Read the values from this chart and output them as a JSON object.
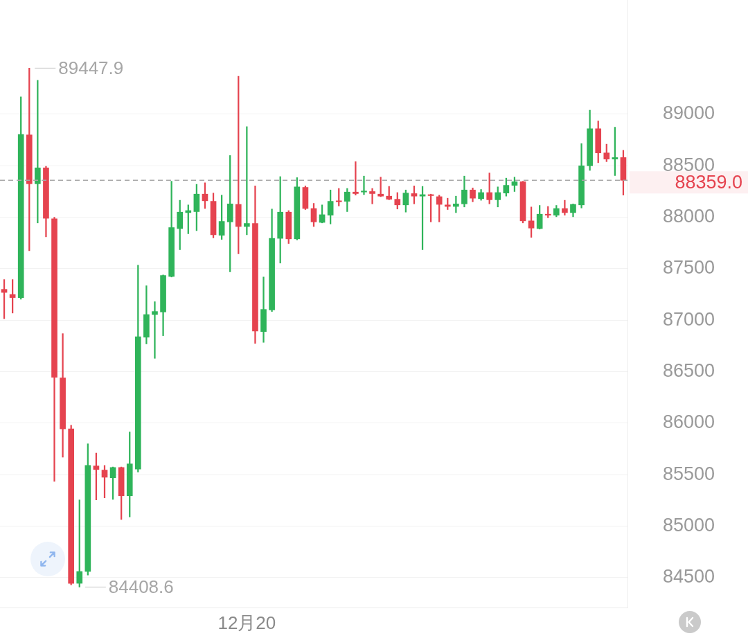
{
  "chart_data": {
    "type": "candlestick",
    "categories": [
      null,
      null,
      null,
      null,
      null,
      null,
      null,
      null,
      null,
      null,
      null,
      null,
      null,
      null,
      null,
      null,
      null,
      null,
      null,
      null,
      null,
      null,
      null,
      null,
      null,
      null,
      null,
      null,
      null,
      "12月20",
      null,
      null,
      null,
      null,
      null,
      null,
      null,
      null,
      null,
      null,
      null,
      null,
      null,
      null,
      null,
      null,
      null,
      null,
      null,
      null,
      null,
      null,
      null,
      null,
      null,
      null,
      null,
      null,
      null,
      null,
      null,
      null,
      null,
      null,
      null,
      null,
      null,
      null,
      null,
      null,
      null,
      null,
      null,
      null,
      null
    ],
    "ohlc": [
      [
        87300,
        87395,
        87015,
        87270
      ],
      [
        87250,
        87395,
        87070,
        87220
      ],
      [
        87220,
        89170,
        87205,
        88805
      ],
      [
        88800,
        89447.9,
        87675,
        88325
      ],
      [
        88325,
        89330,
        87945,
        88480
      ],
      [
        88480,
        88495,
        87810,
        87990
      ],
      [
        87985,
        88000,
        85435,
        86445
      ],
      [
        86440,
        86870,
        85670,
        85945
      ],
      [
        85945,
        85980,
        84430,
        84445
      ],
      [
        84445,
        85255,
        84408.6,
        84560
      ],
      [
        84560,
        85800,
        84525,
        85590
      ],
      [
        85585,
        85710,
        85255,
        85550
      ],
      [
        85545,
        85590,
        85275,
        85475
      ],
      [
        85470,
        85575,
        85260,
        85570
      ],
      [
        85570,
        85575,
        85065,
        85295
      ],
      [
        85295,
        85915,
        85090,
        85605
      ],
      [
        85555,
        87535,
        85525,
        86840
      ],
      [
        86835,
        87335,
        86770,
        87055
      ],
      [
        87055,
        87180,
        86630,
        87085
      ],
      [
        87080,
        87440,
        86850,
        87435
      ],
      [
        87425,
        88350,
        87420,
        87900
      ],
      [
        87890,
        88165,
        87685,
        88050
      ],
      [
        88045,
        88120,
        87840,
        88065
      ],
      [
        88055,
        88320,
        87870,
        88225
      ],
      [
        88225,
        88335,
        88085,
        88160
      ],
      [
        88155,
        88235,
        87800,
        87830
      ],
      [
        87825,
        88215,
        87785,
        87960
      ],
      [
        87955,
        88600,
        87470,
        88130
      ],
      [
        88125,
        89370,
        87645,
        87910
      ],
      [
        87910,
        88880,
        87830,
        87940
      ],
      [
        87940,
        88305,
        86775,
        86895
      ],
      [
        86890,
        87420,
        86785,
        87105
      ],
      [
        87100,
        88080,
        87085,
        87795
      ],
      [
        87795,
        88395,
        87555,
        88050
      ],
      [
        88050,
        88065,
        87745,
        87790
      ],
      [
        87790,
        88385,
        87780,
        88295
      ],
      [
        88290,
        88305,
        88075,
        88085
      ],
      [
        88085,
        88135,
        87910,
        87955
      ],
      [
        87950,
        88120,
        87945,
        88025
      ],
      [
        88020,
        88265,
        87935,
        88155
      ],
      [
        88160,
        88280,
        88110,
        88150
      ],
      [
        88155,
        88280,
        88055,
        88245
      ],
      [
        88245,
        88540,
        88215,
        88230
      ],
      [
        88245,
        88400,
        88220,
        88255
      ],
      [
        88250,
        88280,
        88130,
        88230
      ],
      [
        88225,
        88390,
        88200,
        88205
      ],
      [
        88205,
        88300,
        88170,
        88175
      ],
      [
        88175,
        88240,
        88080,
        88120
      ],
      [
        88120,
        88265,
        88050,
        88235
      ],
      [
        88230,
        88305,
        88130,
        88205
      ],
      [
        88205,
        88300,
        87685,
        88220
      ],
      [
        88220,
        88225,
        87955,
        88210
      ],
      [
        88200,
        88215,
        87955,
        88125
      ],
      [
        88120,
        88185,
        88075,
        88105
      ],
      [
        88105,
        88205,
        88045,
        88130
      ],
      [
        88130,
        88400,
        88100,
        88265
      ],
      [
        88265,
        88285,
        88150,
        88185
      ],
      [
        88180,
        88270,
        88165,
        88240
      ],
      [
        88240,
        88430,
        88130,
        88170
      ],
      [
        88170,
        88295,
        88100,
        88240
      ],
      [
        88235,
        88380,
        88205,
        88310
      ],
      [
        88310,
        88390,
        88250,
        88345
      ],
      [
        88345,
        88350,
        87945,
        87965
      ],
      [
        87965,
        88100,
        87805,
        87895
      ],
      [
        87890,
        88115,
        87885,
        88030
      ],
      [
        88030,
        88105,
        87995,
        88020
      ],
      [
        88020,
        88115,
        88005,
        88085
      ],
      [
        88085,
        88165,
        88020,
        88045
      ],
      [
        88045,
        88130,
        88005,
        88125
      ],
      [
        88120,
        88715,
        88090,
        88500
      ],
      [
        88500,
        89040,
        88455,
        88860
      ],
      [
        88860,
        88935,
        88530,
        88625
      ],
      [
        88625,
        88710,
        88540,
        88565
      ],
      [
        88565,
        88875,
        88405,
        88580
      ],
      [
        88580,
        88650,
        88215,
        88359.0
      ]
    ],
    "colors": [
      "#e5434f",
      "#e5434f",
      "#2fb45a",
      "#e5434f",
      "#2fb45a",
      "#e5434f",
      "#e5434f",
      "#e5434f",
      "#e5434f",
      "#2fb45a",
      "#2fb45a",
      "#e5434f",
      "#e5434f",
      "#2fb45a",
      "#e5434f",
      "#2fb45a",
      "#2fb45a",
      "#2fb45a",
      "#2fb45a",
      "#2fb45a",
      "#2fb45a",
      "#2fb45a",
      "#2fb45a",
      "#2fb45a",
      "#e5434f",
      "#e5434f",
      "#2fb45a",
      "#2fb45a",
      "#e5434f",
      "#2fb45a",
      "#e5434f",
      "#2fb45a",
      "#2fb45a",
      "#2fb45a",
      "#e5434f",
      "#2fb45a",
      "#e5434f",
      "#e5434f",
      "#2fb45a",
      "#2fb45a",
      "#e5434f",
      "#2fb45a",
      "#e5434f",
      "#2fb45a",
      "#e5434f",
      "#e5434f",
      "#e5434f",
      "#e5434f",
      "#2fb45a",
      "#e5434f",
      "#2fb45a",
      "#e5434f",
      "#e5434f",
      "#e5434f",
      "#2fb45a",
      "#2fb45a",
      "#e5434f",
      "#2fb45a",
      "#e5434f",
      "#2fb45a",
      "#2fb45a",
      "#2fb45a",
      "#e5434f",
      "#e5434f",
      "#2fb45a",
      "#e5434f",
      "#2fb45a",
      "#e5434f",
      "#2fb45a",
      "#2fb45a",
      "#2fb45a",
      "#e5434f",
      "#e5434f",
      "#2fb45a",
      "#e5434f"
    ],
    "ylim": [
      84210,
      90110
    ],
    "yticks": [
      84500,
      85000,
      85500,
      86000,
      86500,
      87000,
      87500,
      88000,
      88500,
      89000
    ],
    "grid": "y",
    "ref_lines": [
      {
        "axis": "y",
        "value": 88359.0,
        "label": "88359.0",
        "color": "#a8a8a8",
        "line_style": "dashed"
      }
    ],
    "annotations": [
      "89447.9",
      "84408.6"
    ]
  }
}
